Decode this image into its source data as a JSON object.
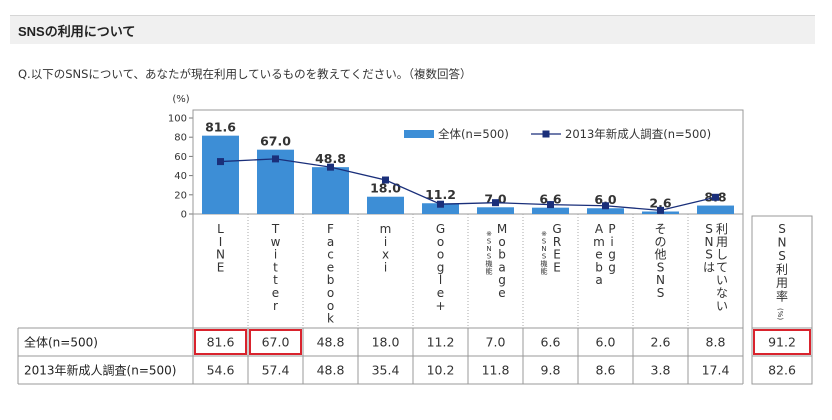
{
  "section_title": "SNSの利用について",
  "question": "Q.以下のSNSについて、あなたが現在利用しているものを教えてください。（複数回答）",
  "chart_data": {
    "type": "bar",
    "y_unit": "(%)",
    "ylim": [
      0,
      100
    ],
    "yticks": [
      "0",
      "20",
      "40",
      "60",
      "80",
      "100"
    ],
    "categories": [
      "LINE",
      "Twitter",
      "Facebook",
      "mixi",
      "Google+",
      "Mobage",
      "GREE",
      "Ameba Pigg",
      "その他SNS",
      "SNSは利用していない"
    ],
    "category_notes": [
      "",
      "",
      "",
      "",
      "",
      "※SNS機能",
      "※SNS機能",
      "",
      "",
      ""
    ],
    "category_columns": [
      [
        [
          "L",
          "I",
          "N",
          "E"
        ]
      ],
      [
        [
          "T",
          "w",
          "i",
          "t",
          "t",
          "e",
          "r"
        ]
      ],
      [
        [
          "F",
          "a",
          "c",
          "e",
          "b",
          "o",
          "o",
          "k"
        ]
      ],
      [
        [
          "m",
          "i",
          "x",
          "i"
        ]
      ],
      [
        [
          "G",
          "o",
          "o",
          "g",
          "l",
          "e",
          "+"
        ]
      ],
      [
        [
          "M",
          "o",
          "b",
          "a",
          "g",
          "e"
        ]
      ],
      [
        [
          "G",
          "R",
          "E",
          "E"
        ]
      ],
      [
        [
          "A",
          "m",
          "e",
          "b",
          "a"
        ],
        [
          "P",
          "i",
          "g",
          "g"
        ]
      ],
      [
        [
          "そ",
          "の",
          "他",
          "S",
          "N",
          "S"
        ]
      ],
      [
        [
          "S",
          "N",
          "S",
          "は"
        ],
        [
          "利",
          "用",
          "し",
          "て",
          "い",
          "な",
          "い"
        ]
      ]
    ],
    "series": [
      {
        "name": "全体(n=500)",
        "type": "bar",
        "values": [
          81.6,
          67.0,
          48.8,
          18.0,
          11.2,
          7.0,
          6.6,
          6.0,
          2.6,
          8.8
        ],
        "color": "#3d8ed6"
      },
      {
        "name": "2013年新成人調査(n=500)",
        "type": "line",
        "values": [
          54.6,
          57.4,
          48.8,
          35.4,
          10.2,
          11.8,
          9.8,
          8.6,
          3.8,
          17.4
        ],
        "color": "#1a2f7a"
      }
    ],
    "bar_labels": [
      "81.6",
      "67.0",
      "48.8",
      "18.0",
      "11.2",
      "7.0",
      "6.6",
      "6.0",
      "2.6",
      "8.8"
    ],
    "legend_position": "top-right",
    "highlight_color": "#d9232d"
  },
  "table": {
    "rows": [
      {
        "label": "全体(n=500)",
        "cells": [
          "81.6",
          "67.0",
          "48.8",
          "18.0",
          "11.2",
          "7.0",
          "6.6",
          "6.0",
          "2.6",
          "8.8"
        ],
        "highlight": [
          true,
          true,
          false,
          false,
          false,
          false,
          false,
          false,
          false,
          false
        ]
      },
      {
        "label": "2013年新成人調査(n=500)",
        "cells": [
          "54.6",
          "57.4",
          "48.8",
          "35.4",
          "10.2",
          "11.8",
          "9.8",
          "8.6",
          "3.8",
          "17.4"
        ],
        "highlight": [
          false,
          false,
          false,
          false,
          false,
          false,
          false,
          false,
          false,
          false
        ]
      }
    ]
  },
  "sns_rate": {
    "label_chars": [
      "S",
      "N",
      "S",
      "利",
      "用",
      "率"
    ],
    "unit": "(%)",
    "values": [
      "91.2",
      "82.6"
    ],
    "highlight": [
      true,
      false
    ]
  }
}
